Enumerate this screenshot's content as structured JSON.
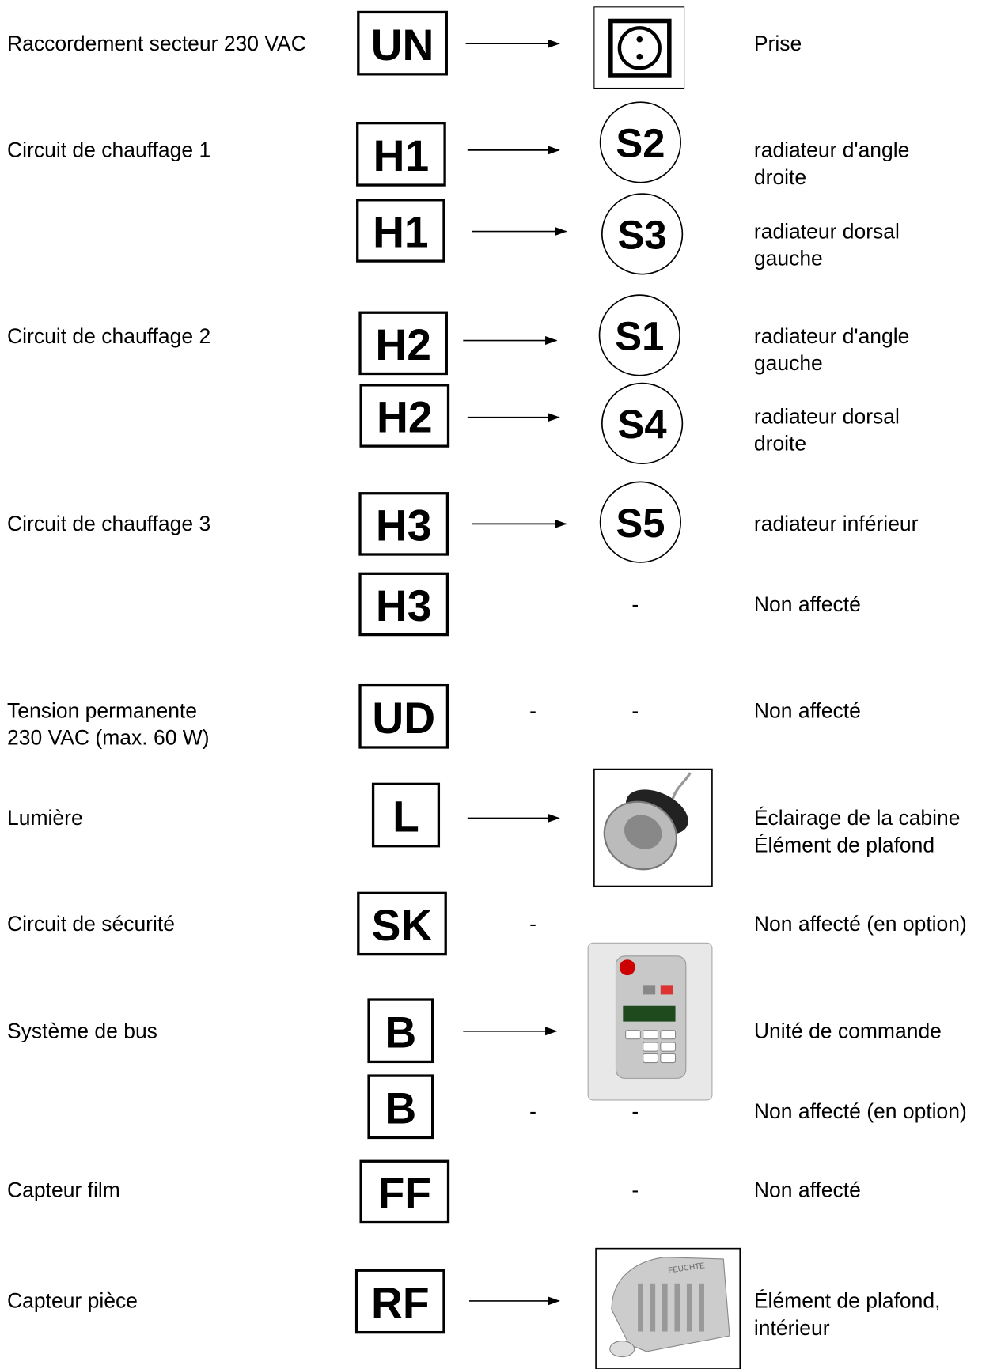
{
  "rows": [
    {
      "label": [
        "Raccordement secteur 230 VAC"
      ],
      "code": "UN",
      "description": [
        "Prise"
      ]
    },
    {
      "label": [
        "Circuit de chauffage 1"
      ],
      "code": "H1",
      "target": "S2",
      "description": [
        "radiateur d'angle",
        "droite"
      ]
    },
    {
      "code": "H1",
      "target": "S3",
      "description": [
        "radiateur dorsal",
        "gauche"
      ]
    },
    {
      "label": [
        "Circuit de chauffage 2"
      ],
      "code": "H2",
      "target": "S1",
      "description": [
        "radiateur d'angle",
        "gauche"
      ]
    },
    {
      "code": "H2",
      "target": "S4",
      "description": [
        "radiateur dorsal",
        "droite"
      ]
    },
    {
      "label": [
        "Circuit de chauffage 3"
      ],
      "code": "H3",
      "target": "S5",
      "description": [
        "radiateur inférieur"
      ]
    },
    {
      "code": "H3",
      "target": "-",
      "description": [
        "Non affecté"
      ]
    },
    {
      "label": [
        "Tension permanente",
        "230 VAC (max. 60 W)"
      ],
      "code": "UD",
      "dash": "-",
      "target": "-",
      "description": [
        "Non affecté"
      ]
    },
    {
      "label": [
        "Lumière"
      ],
      "code": "L",
      "description": [
        "Éclairage de la cabine",
        "Élément de plafond"
      ]
    },
    {
      "label": [
        "Circuit de sécurité"
      ],
      "code": "SK",
      "dash": "-",
      "description": [
        "Non affecté (en option)"
      ]
    },
    {
      "label": [
        "Système de bus"
      ],
      "code": "B",
      "description": [
        "Unité de commande"
      ]
    },
    {
      "code": "B",
      "dash": "-",
      "target": "-",
      "description": [
        "Non affecté (en option)"
      ]
    },
    {
      "label": [
        "Capteur film"
      ],
      "code": "FF",
      "target": "-",
      "description": [
        "Non affecté"
      ]
    },
    {
      "label": [
        "Capteur pièce"
      ],
      "code": "RF",
      "description": [
        "Élément de plafond,",
        "intérieur"
      ],
      "icon_text": "FEUCHTE"
    }
  ]
}
